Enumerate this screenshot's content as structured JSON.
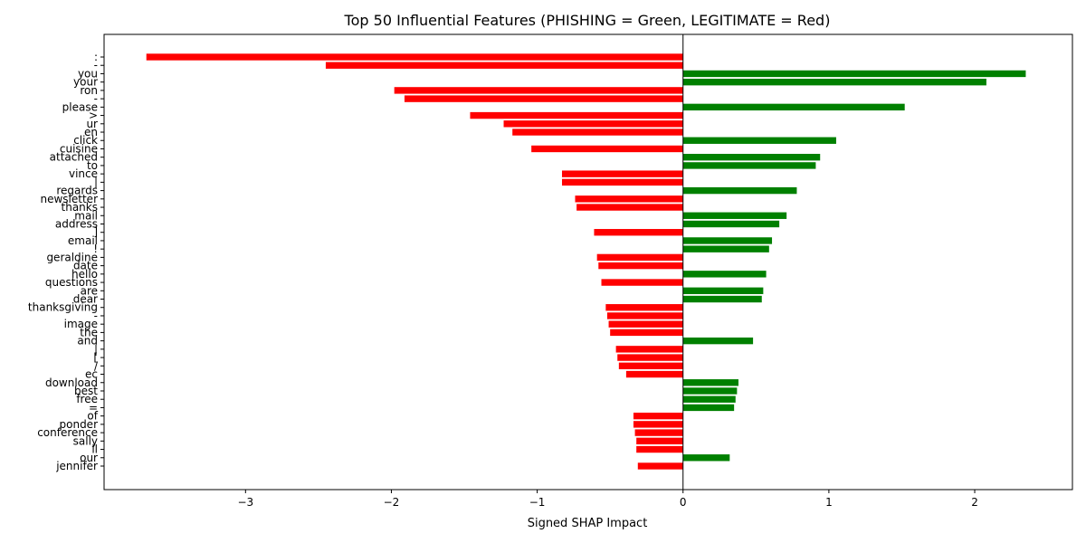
{
  "chart_data": {
    "type": "bar",
    "orientation": "horizontal",
    "title": "Top 50 Influential Features (PHISHING = Green, LEGITIMATE = Red)",
    "xlabel": "Signed SHAP Impact",
    "ylabel": "",
    "xlim": [
      -3.97,
      2.67
    ],
    "xticks": [
      -3,
      -2,
      -1,
      0,
      1,
      2
    ],
    "xtick_labels": [
      "−3",
      "−2",
      "−1",
      "0",
      "1",
      "2"
    ],
    "grid": false,
    "legend": "none",
    "colors": {
      "positive": "#008000",
      "negative": "#ff0000"
    },
    "categories": [
      ":",
      "-",
      "you",
      "your",
      "ron",
      "-",
      "please",
      ">",
      "ur",
      "en",
      "click",
      "cuisine",
      "attached",
      "to",
      "vince",
      "|",
      "regards",
      "newsletter",
      "thanks",
      "mail",
      "address",
      "]",
      "email",
      "!",
      "geraldine",
      "date",
      "hello",
      "questions",
      "are",
      "dear",
      "thanksgiving",
      "-",
      "image",
      "the",
      "and",
      "|",
      "[",
      "/",
      "ec",
      "download",
      "best",
      "free",
      "=",
      "of",
      "ponder",
      "conference",
      "sally",
      "ll",
      "our",
      "jennifer"
    ],
    "values": [
      -3.68,
      -2.45,
      2.35,
      2.08,
      -1.98,
      -1.91,
      1.52,
      -1.46,
      -1.23,
      -1.17,
      1.05,
      -1.04,
      0.94,
      0.91,
      -0.83,
      -0.83,
      0.78,
      -0.74,
      -0.73,
      0.71,
      0.66,
      -0.61,
      0.61,
      0.59,
      -0.59,
      -0.58,
      0.57,
      -0.56,
      0.55,
      0.54,
      -0.53,
      -0.52,
      -0.51,
      -0.5,
      0.48,
      -0.46,
      -0.45,
      -0.44,
      -0.39,
      0.38,
      0.37,
      0.36,
      0.35,
      -0.34,
      -0.34,
      -0.33,
      -0.32,
      -0.32,
      0.32,
      -0.31
    ]
  }
}
